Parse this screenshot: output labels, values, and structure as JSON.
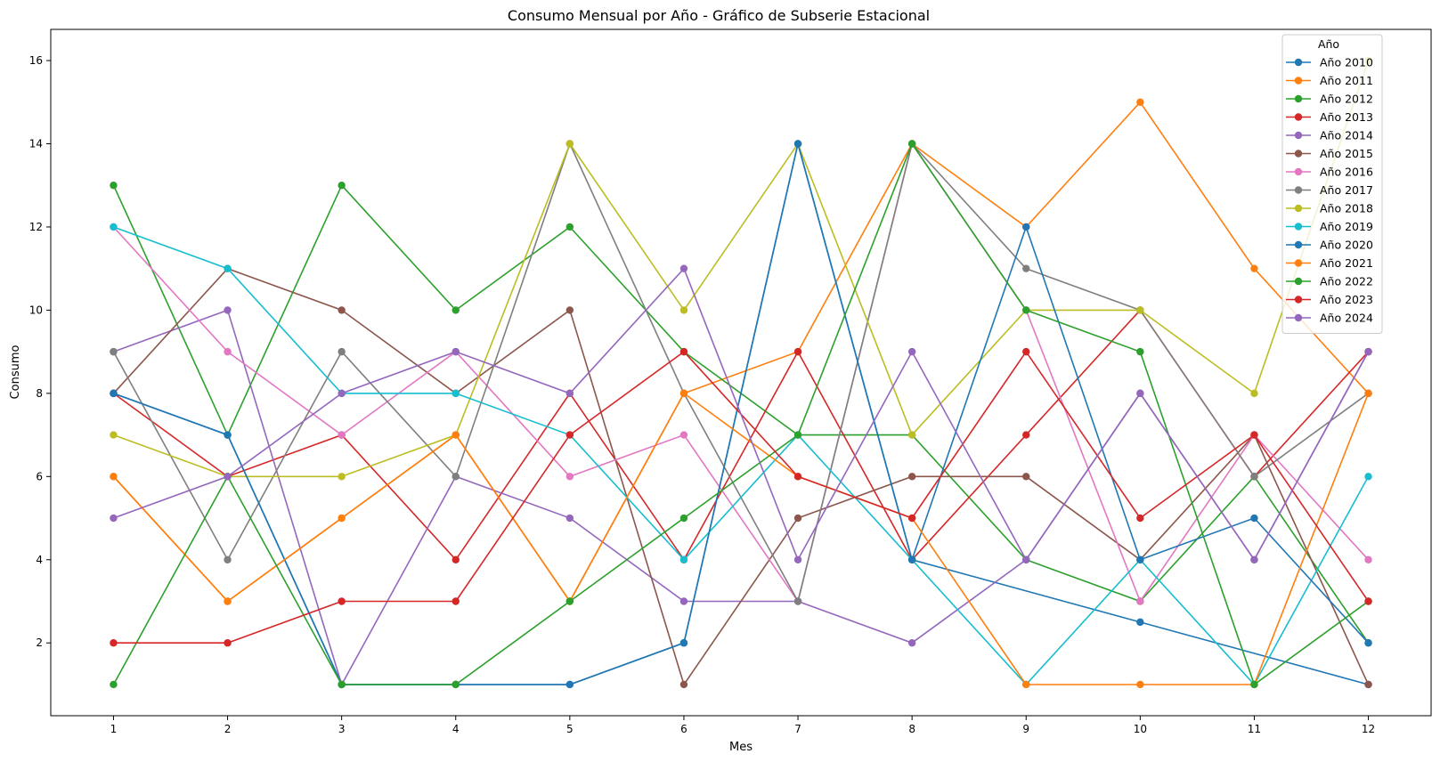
{
  "chart_data": {
    "type": "line",
    "title": "Consumo Mensual por Año - Gráfico de Subserie Estacional",
    "xlabel": "Mes",
    "ylabel": "Consumo",
    "x": [
      1,
      2,
      3,
      4,
      5,
      6,
      7,
      8,
      9,
      10,
      11,
      12
    ],
    "xlim": [
      0.45,
      12.55
    ],
    "ylim": [
      0.25,
      16.75
    ],
    "yticks": [
      2,
      4,
      6,
      8,
      10,
      12,
      14,
      16
    ],
    "grid": false,
    "legend": {
      "title": "Año",
      "placement": "top-right"
    },
    "series": [
      {
        "name": "Año 2010",
        "color": "#1f77b4",
        "values": [
          8,
          7,
          1,
          1,
          1,
          2,
          14,
          4,
          null,
          2.5,
          null,
          1
        ]
      },
      {
        "name": "Año 2011",
        "color": "#ff7f0e",
        "values": [
          6,
          3,
          5,
          7,
          3,
          8,
          9,
          14,
          12,
          15,
          11,
          8
        ]
      },
      {
        "name": "Año 2012",
        "color": "#2ca02c",
        "values": [
          13,
          7,
          13,
          10,
          12,
          9,
          7,
          7,
          4,
          3,
          6,
          2
        ]
      },
      {
        "name": "Año 2013",
        "color": "#d62728",
        "values": [
          8,
          6,
          7,
          4,
          8,
          4,
          9,
          4,
          7,
          10,
          6,
          9
        ]
      },
      {
        "name": "Año 2014",
        "color": "#9467bd",
        "values": [
          9,
          10,
          1,
          6,
          5,
          3,
          3,
          2,
          4,
          8,
          4,
          9
        ]
      },
      {
        "name": "Año 2015",
        "color": "#8c564b",
        "values": [
          8,
          11,
          10,
          8,
          10,
          1,
          5,
          6,
          6,
          4,
          7,
          1
        ]
      },
      {
        "name": "Año 2016",
        "color": "#e377c2",
        "values": [
          12,
          9,
          7,
          9,
          6,
          7,
          3,
          14,
          10,
          3,
          7,
          4
        ]
      },
      {
        "name": "Año 2017",
        "color": "#7f7f7f",
        "values": [
          9,
          4,
          9,
          6,
          14,
          8,
          3,
          14,
          11,
          10,
          6,
          8
        ]
      },
      {
        "name": "Año 2018",
        "color": "#bcbd22",
        "values": [
          7,
          6,
          6,
          7,
          14,
          10,
          14,
          7,
          10,
          10,
          8,
          16
        ]
      },
      {
        "name": "Año 2019",
        "color": "#17becf",
        "values": [
          12,
          11,
          8,
          8,
          7,
          4,
          7,
          4,
          1,
          4,
          1,
          6
        ]
      },
      {
        "name": "Año 2020",
        "color": "#1f77b4",
        "values": [
          8,
          7,
          1,
          1,
          1,
          2,
          14,
          4,
          12,
          4,
          5,
          2
        ]
      },
      {
        "name": "Año 2021",
        "color": "#ff7f0e",
        "values": [
          6,
          3,
          5,
          7,
          3,
          8,
          6,
          5,
          1,
          1,
          1,
          8
        ]
      },
      {
        "name": "Año 2022",
        "color": "#2ca02c",
        "values": [
          1,
          6,
          1,
          1,
          3,
          5,
          7,
          14,
          10,
          9,
          1,
          3
        ]
      },
      {
        "name": "Año 2023",
        "color": "#d62728",
        "values": [
          2,
          2,
          3,
          3,
          7,
          9,
          6,
          5,
          9,
          5,
          7,
          3
        ]
      },
      {
        "name": "Año 2024",
        "color": "#9467bd",
        "values": [
          5,
          6,
          8,
          9,
          8,
          11,
          4,
          9,
          4,
          8,
          4,
          9
        ]
      }
    ]
  }
}
